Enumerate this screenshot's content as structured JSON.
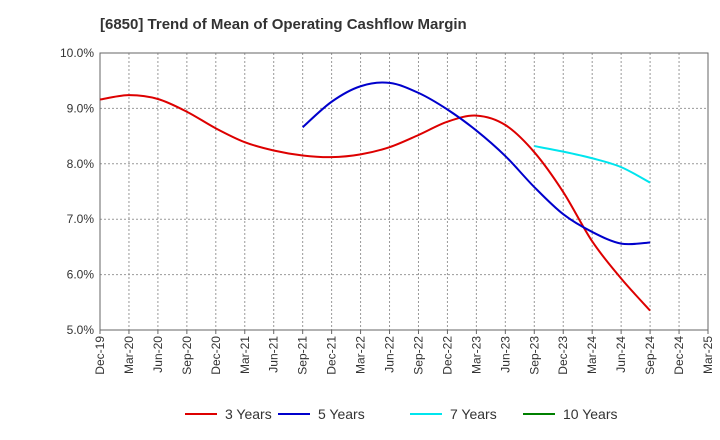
{
  "chart_data": {
    "type": "line",
    "title": "[6850]  Trend of Mean of Operating Cashflow Margin",
    "xlabel": "",
    "ylabel": "",
    "ylim": [
      5.0,
      10.0
    ],
    "y_ticks": [
      5.0,
      6.0,
      7.0,
      8.0,
      9.0,
      10.0
    ],
    "y_tick_labels": [
      "5.0%",
      "6.0%",
      "7.0%",
      "8.0%",
      "9.0%",
      "10.0%"
    ],
    "categories": [
      "Dec-19",
      "Mar-20",
      "Jun-20",
      "Sep-20",
      "Dec-20",
      "Mar-21",
      "Jun-21",
      "Sep-21",
      "Dec-21",
      "Mar-22",
      "Jun-22",
      "Sep-22",
      "Dec-22",
      "Mar-23",
      "Jun-23",
      "Sep-23",
      "Dec-23",
      "Mar-24",
      "Jun-24",
      "Sep-24",
      "Dec-24",
      "Mar-25"
    ],
    "x_tick_labels": [
      "Dec-19",
      "Mar-20",
      "Jun-20",
      "Sep-20",
      "Dec-20",
      "Mar-21",
      "Jun-21",
      "Sep-21",
      "Dec-21",
      "Mar-22",
      "Jun-22",
      "Sep-22",
      "Dec-22",
      "Mar-23",
      "Jun-23",
      "Sep-23",
      "Dec-23",
      "Mar-24",
      "Jun-24",
      "Sep-24",
      "Dec-24",
      "Mar-25"
    ],
    "grid": true,
    "legend_position": "bottom",
    "series": [
      {
        "name": "3 Years",
        "color": "#dd0000",
        "values": [
          9.16,
          9.24,
          9.17,
          8.94,
          8.64,
          8.39,
          8.24,
          8.15,
          8.12,
          8.17,
          8.3,
          8.52,
          8.76,
          8.87,
          8.7,
          8.21,
          7.49,
          6.6,
          5.93,
          5.35,
          null,
          null
        ]
      },
      {
        "name": "5 Years",
        "color": "#0000cc",
        "values": [
          null,
          null,
          null,
          null,
          null,
          null,
          null,
          8.66,
          9.12,
          9.4,
          9.46,
          9.28,
          8.98,
          8.6,
          8.14,
          7.58,
          7.09,
          6.77,
          6.56,
          6.58,
          null,
          null
        ]
      },
      {
        "name": "7 Years",
        "color": "#00e5ee",
        "values": [
          null,
          null,
          null,
          null,
          null,
          null,
          null,
          null,
          null,
          null,
          null,
          null,
          null,
          null,
          null,
          8.32,
          8.22,
          8.1,
          7.94,
          7.66,
          null,
          null
        ]
      },
      {
        "name": "10 Years",
        "color": "#008000",
        "values": [
          null,
          null,
          null,
          null,
          null,
          null,
          null,
          null,
          null,
          null,
          null,
          null,
          null,
          null,
          null,
          null,
          null,
          null,
          null,
          null,
          null,
          null
        ]
      }
    ]
  }
}
